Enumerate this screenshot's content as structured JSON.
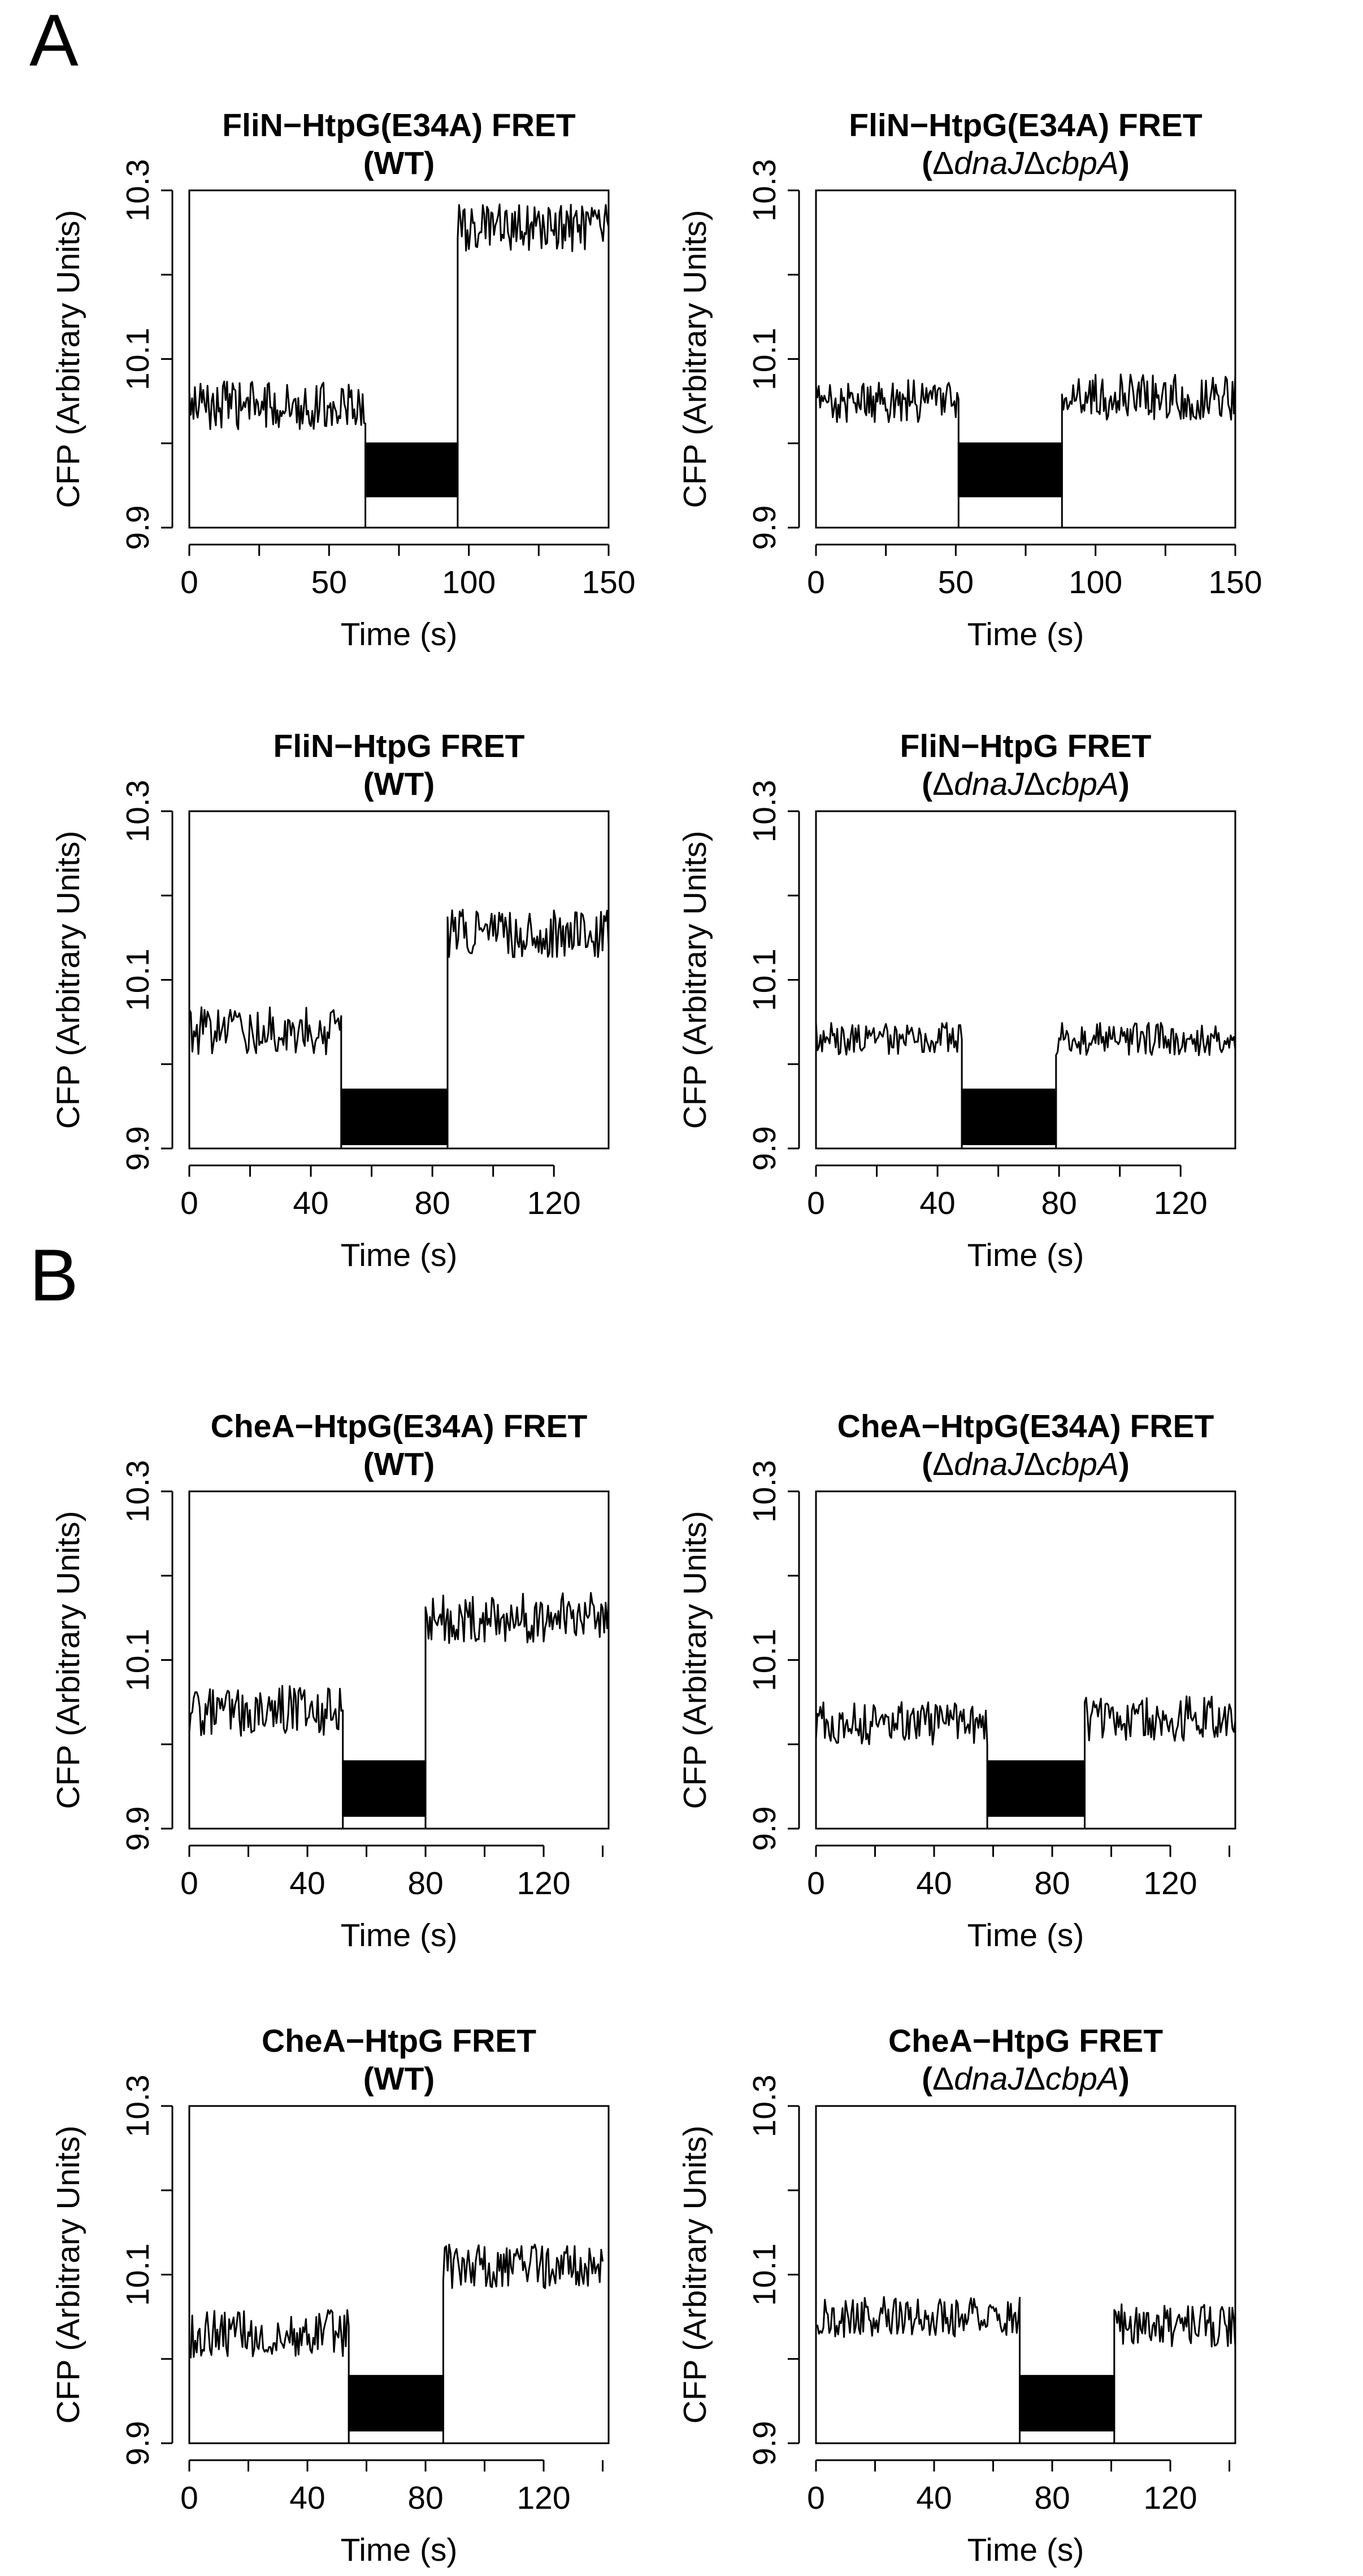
{
  "figure": {
    "panel_labels": [
      "A",
      "B"
    ]
  },
  "chart_data": [
    {
      "type": "line",
      "title_line1": "FliN−HtpG(E34A) FRET",
      "title_line2": "(WT)",
      "title_line2_parts": [
        "(WT)"
      ],
      "xlabel": "Time (s)",
      "ylabel": "CFP (Arbitrary Units)",
      "xlim": [
        0,
        150
      ],
      "ylim": [
        9.9,
        10.3
      ],
      "xticks": [
        0,
        50,
        100,
        150
      ],
      "xticks_minor": [
        25,
        75,
        125
      ],
      "yticks": [
        9.9,
        10.1,
        10.3
      ],
      "yticks_minor": [
        10.0,
        10.2
      ],
      "ytick_labels": [
        "9.9",
        "10.1",
        "10.3"
      ],
      "segments": [
        {
          "x_start": 0,
          "x_end": 63,
          "level": 10.045,
          "noise": 0.019
        },
        {
          "x_start": 96,
          "x_end": 150,
          "level": 10.255,
          "noise": 0.019
        }
      ],
      "gap": {
        "x_start": 63,
        "x_end": 96
      },
      "bar": {
        "x_start": 63,
        "x_end": 96,
        "y_bottom": 9.937,
        "y_top": 10.0
      }
    },
    {
      "type": "line",
      "title_line1": "FliN−HtpG(E34A) FRET",
      "title_line2": "(ΔdnaJΔcbpA)",
      "title_line2_parts": [
        "(Δ",
        "dnaJ",
        "Δ",
        "cbpA",
        ")"
      ],
      "xlabel": "Time (s)",
      "ylabel": "CFP (Arbitrary Units)",
      "xlim": [
        0,
        150
      ],
      "ylim": [
        9.9,
        10.3
      ],
      "xticks": [
        0,
        50,
        100,
        150
      ],
      "xticks_minor": [
        25,
        75,
        125
      ],
      "yticks": [
        9.9,
        10.1,
        10.3
      ],
      "yticks_minor": [
        10.0,
        10.2
      ],
      "ytick_labels": [
        "9.9",
        "10.1",
        "10.3"
      ],
      "segments": [
        {
          "x_start": 0,
          "x_end": 51,
          "level": 10.05,
          "noise": 0.017
        },
        {
          "x_start": 88,
          "x_end": 150,
          "level": 10.055,
          "noise": 0.018
        }
      ],
      "gap": {
        "x_start": 51,
        "x_end": 88
      },
      "bar": {
        "x_start": 51,
        "x_end": 88,
        "y_bottom": 9.937,
        "y_top": 10.0
      }
    },
    {
      "type": "line",
      "title_line1": "FliN−HtpG FRET",
      "title_line2": "(WT)",
      "title_line2_parts": [
        "(WT)"
      ],
      "xlabel": "Time (s)",
      "ylabel": "CFP (Arbitrary Units)",
      "xlim": [
        0,
        138
      ],
      "ylim": [
        9.9,
        10.3
      ],
      "xticks": [
        0,
        40,
        80,
        120
      ],
      "xticks_minor": [
        20,
        60,
        100
      ],
      "yticks": [
        9.9,
        10.1,
        10.3
      ],
      "yticks_minor": [
        10.0,
        10.2
      ],
      "ytick_labels": [
        "9.9",
        "10.1",
        "10.3"
      ],
      "segments": [
        {
          "x_start": 0,
          "x_end": 50,
          "level": 10.04,
          "noise": 0.019
        },
        {
          "x_start": 85,
          "x_end": 138,
          "level": 10.155,
          "noise": 0.019
        }
      ],
      "gap": {
        "x_start": 50,
        "x_end": 85
      },
      "bar": {
        "x_start": 50,
        "x_end": 85,
        "y_bottom": 9.905,
        "y_top": 9.97
      }
    },
    {
      "type": "line",
      "title_line1": "FliN−HtpG FRET",
      "title_line2": "(ΔdnaJΔcbpA)",
      "title_line2_parts": [
        "(Δ",
        "dnaJ",
        "Δ",
        "cbpA",
        ")"
      ],
      "xlabel": "Time (s)",
      "ylabel": "CFP (Arbitrary Units)",
      "xlim": [
        0,
        138
      ],
      "ylim": [
        9.9,
        10.3
      ],
      "xticks": [
        0,
        40,
        80,
        120
      ],
      "xticks_minor": [
        20,
        60,
        100
      ],
      "yticks": [
        9.9,
        10.1,
        10.3
      ],
      "yticks_minor": [
        10.0,
        10.2
      ],
      "ytick_labels": [
        "9.9",
        "10.1",
        "10.3"
      ],
      "segments": [
        {
          "x_start": 0,
          "x_end": 48,
          "level": 10.03,
          "noise": 0.013
        },
        {
          "x_start": 79,
          "x_end": 138,
          "level": 10.03,
          "noise": 0.013
        }
      ],
      "gap": {
        "x_start": 48,
        "x_end": 79
      },
      "bar": {
        "x_start": 48,
        "x_end": 79,
        "y_bottom": 9.905,
        "y_top": 9.97
      }
    },
    {
      "type": "line",
      "title_line1": "CheA−HtpG(E34A) FRET",
      "title_line2": "(WT)",
      "title_line2_parts": [
        "(WT)"
      ],
      "xlabel": "Time (s)",
      "ylabel": "CFP (Arbitrary Units)",
      "xlim": [
        0,
        142
      ],
      "ylim": [
        9.9,
        10.3
      ],
      "xticks": [
        0,
        40,
        80,
        120
      ],
      "xticks_minor": [
        20,
        60,
        100,
        140
      ],
      "yticks": [
        9.9,
        10.1,
        10.3
      ],
      "yticks_minor": [
        10.0,
        10.2
      ],
      "ytick_labels": [
        "9.9",
        "10.1",
        "10.3"
      ],
      "segments": [
        {
          "x_start": 0,
          "x_end": 52,
          "level": 10.04,
          "noise": 0.02
        },
        {
          "x_start": 80,
          "x_end": 142,
          "level": 10.15,
          "noise": 0.02
        }
      ],
      "gap": {
        "x_start": 52,
        "x_end": 80
      },
      "bar": {
        "x_start": 52,
        "x_end": 80,
        "y_bottom": 9.915,
        "y_top": 9.98
      }
    },
    {
      "type": "line",
      "title_line1": "CheA−HtpG(E34A) FRET",
      "title_line2": "(ΔdnaJΔcbpA)",
      "title_line2_parts": [
        "(Δ",
        "dnaJ",
        "Δ",
        "cbpA",
        ")"
      ],
      "xlabel": "Time (s)",
      "ylabel": "CFP (Arbitrary Units)",
      "xlim": [
        0,
        142
      ],
      "ylim": [
        9.9,
        10.3
      ],
      "xticks": [
        0,
        40,
        80,
        120
      ],
      "xticks_minor": [
        20,
        60,
        100,
        140
      ],
      "yticks": [
        9.9,
        10.1,
        10.3
      ],
      "yticks_minor": [
        10.0,
        10.2
      ],
      "ytick_labels": [
        "9.9",
        "10.1",
        "10.3"
      ],
      "segments": [
        {
          "x_start": 0,
          "x_end": 58,
          "level": 10.025,
          "noise": 0.017
        },
        {
          "x_start": 91,
          "x_end": 142,
          "level": 10.03,
          "noise": 0.018
        }
      ],
      "gap": {
        "x_start": 58,
        "x_end": 91
      },
      "bar": {
        "x_start": 58,
        "x_end": 91,
        "y_bottom": 9.915,
        "y_top": 9.98
      }
    },
    {
      "type": "line",
      "title_line1": "CheA−HtpG FRET",
      "title_line2": "(WT)",
      "title_line2_parts": [
        "(WT)"
      ],
      "xlabel": "Time (s)",
      "ylabel": "CFP (Arbitrary Units)",
      "xlim": [
        0,
        142
      ],
      "ylim": [
        9.9,
        10.3
      ],
      "xticks": [
        0,
        40,
        80,
        120
      ],
      "xticks_minor": [
        20,
        60,
        100,
        140
      ],
      "yticks": [
        9.9,
        10.1,
        10.3
      ],
      "yticks_minor": [
        10.0,
        10.2
      ],
      "ytick_labels": [
        "9.9",
        "10.1",
        "10.3"
      ],
      "segments": [
        {
          "x_start": 0,
          "x_end": 54,
          "level": 10.03,
          "noise": 0.019
        },
        {
          "x_start": 86,
          "x_end": 140,
          "level": 10.11,
          "noise": 0.018
        }
      ],
      "gap": {
        "x_start": 54,
        "x_end": 86
      },
      "bar": {
        "x_start": 54,
        "x_end": 86,
        "y_bottom": 9.915,
        "y_top": 9.98
      }
    },
    {
      "type": "line",
      "title_line1": "CheA−HtpG FRET",
      "title_line2": "(ΔdnaJΔcbpA)",
      "title_line2_parts": [
        "(Δ",
        "dnaJ",
        "Δ",
        "cbpA",
        ")"
      ],
      "xlabel": "Time (s)",
      "ylabel": "CFP (Arbitrary Units)",
      "xlim": [
        0,
        142
      ],
      "ylim": [
        9.9,
        10.3
      ],
      "xticks": [
        0,
        40,
        80,
        120
      ],
      "xticks_minor": [
        20,
        60,
        100,
        140
      ],
      "yticks": [
        9.9,
        10.1,
        10.3
      ],
      "yticks_minor": [
        10.0,
        10.2
      ],
      "ytick_labels": [
        "9.9",
        "10.1",
        "10.3"
      ],
      "segments": [
        {
          "x_start": 0,
          "x_end": 69,
          "level": 10.05,
          "noise": 0.016
        },
        {
          "x_start": 101,
          "x_end": 142,
          "level": 10.04,
          "noise": 0.017
        }
      ],
      "gap": {
        "x_start": 69,
        "x_end": 101
      },
      "bar": {
        "x_start": 69,
        "x_end": 101,
        "y_bottom": 9.915,
        "y_top": 9.98
      }
    }
  ]
}
